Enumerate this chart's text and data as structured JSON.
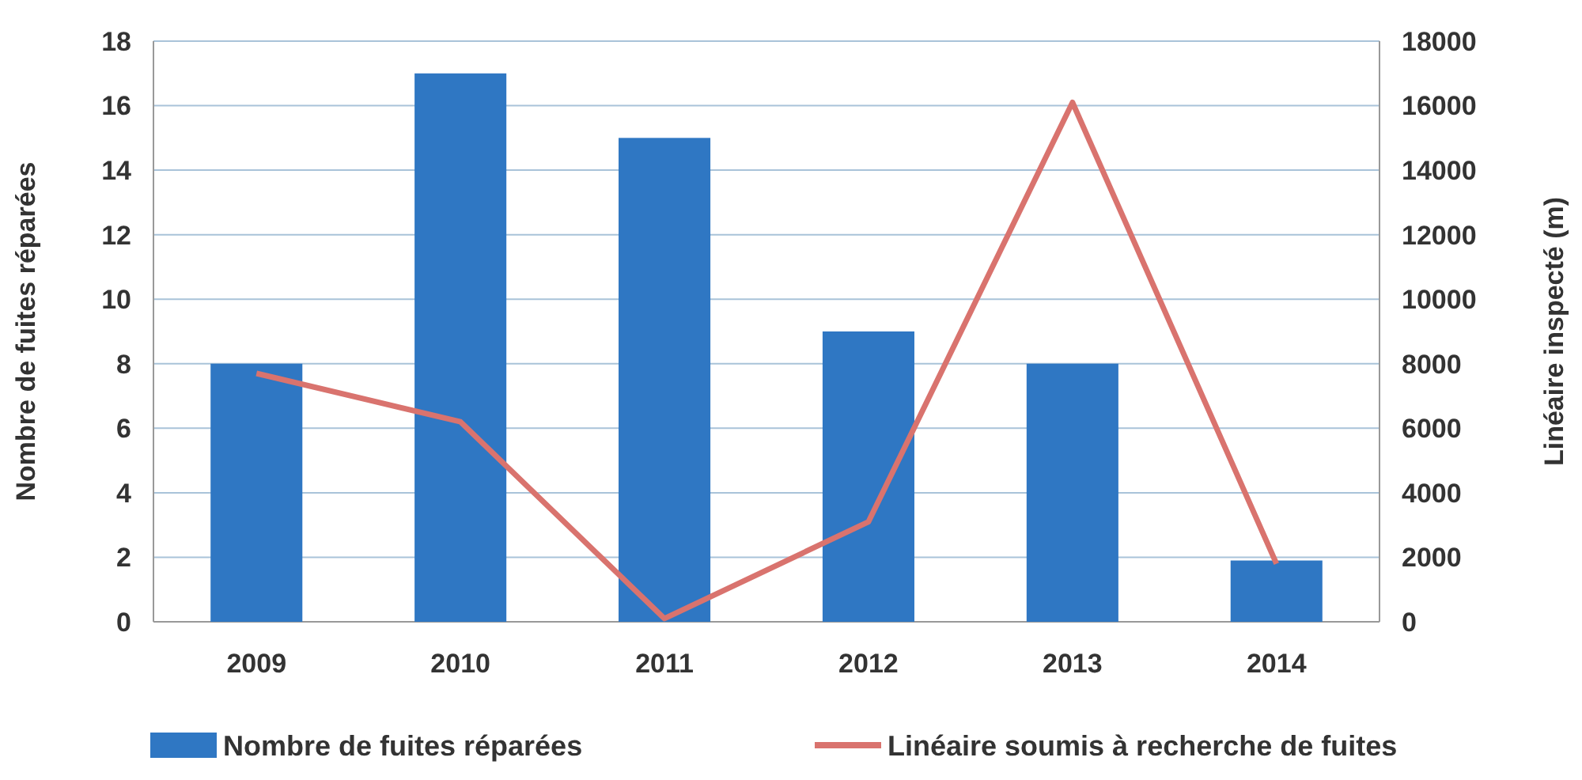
{
  "chart_data": {
    "type": "bar",
    "categories": [
      "2009",
      "2010",
      "2011",
      "2012",
      "2013",
      "2014"
    ],
    "ylabel": "Nombre de fuites réparées",
    "y2label": "Linéaire inspecté (m)",
    "ylim": [
      0,
      18
    ],
    "yticks": [
      0,
      2,
      4,
      6,
      8,
      10,
      12,
      14,
      16,
      18
    ],
    "y2lim": [
      0,
      18000
    ],
    "y2ticks": [
      0,
      2000,
      4000,
      6000,
      8000,
      10000,
      12000,
      14000,
      16000,
      18000
    ],
    "grid": "y",
    "legend": "bottom",
    "series": [
      {
        "name": "Nombre de fuites réparées",
        "color": "#2f77c3",
        "values": [
          8,
          17,
          15,
          9,
          8,
          1.9
        ]
      },
      {
        "name": "Linéaire soumis à recherche de fuites",
        "type": "line",
        "axis": "y2",
        "color": "#d9736e",
        "values": [
          7700,
          6200,
          100,
          3100,
          16100,
          1800
        ]
      }
    ]
  }
}
